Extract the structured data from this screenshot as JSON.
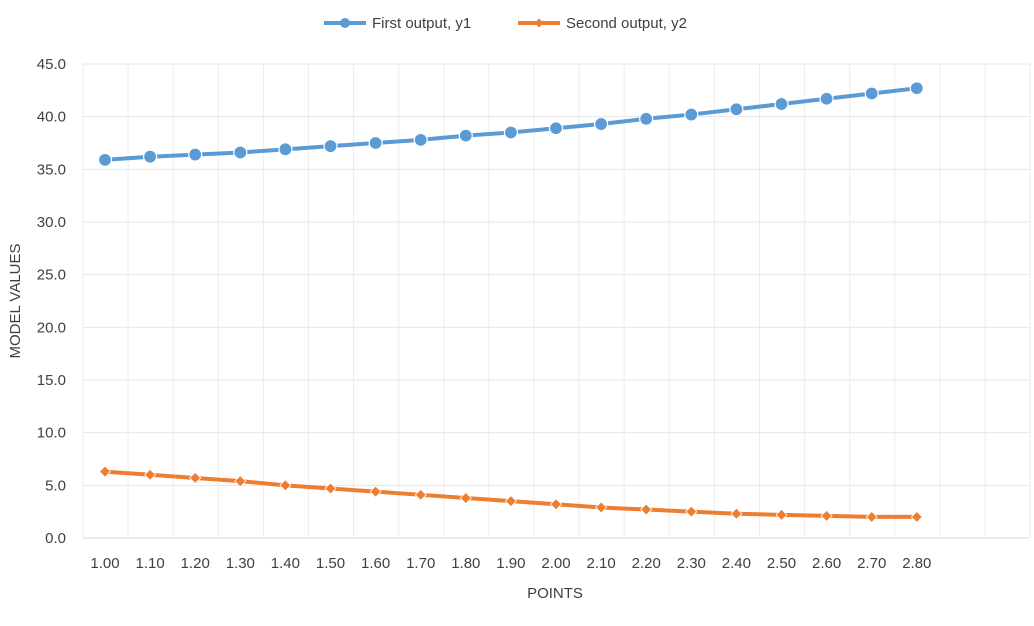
{
  "chart_data": {
    "type": "line",
    "xlabel": "POINTS",
    "ylabel": "MODEL VALUES",
    "ylim": [
      0,
      45
    ],
    "y_ticks": [
      "0.0",
      "5.0",
      "10.0",
      "15.0",
      "20.0",
      "25.0",
      "30.0",
      "35.0",
      "40.0",
      "45.0"
    ],
    "categories": [
      "1.00",
      "1.10",
      "1.20",
      "1.30",
      "1.40",
      "1.50",
      "1.60",
      "1.70",
      "1.80",
      "1.90",
      "2.00",
      "2.10",
      "2.20",
      "2.30",
      "2.40",
      "2.50",
      "2.60",
      "2.70",
      "2.80"
    ],
    "grid": "vertical-and-horizontal",
    "legend_position": "top",
    "series": [
      {
        "name": "First output, y1",
        "color": "#5B9BD5",
        "marker": "circle",
        "values": [
          35.9,
          36.2,
          36.4,
          36.6,
          36.9,
          37.2,
          37.5,
          37.8,
          38.2,
          38.5,
          38.9,
          39.3,
          39.8,
          40.2,
          40.7,
          41.2,
          41.7,
          42.2,
          42.7
        ]
      },
      {
        "name": "Second output, y2",
        "color": "#ED7D31",
        "marker": "diamond",
        "values": [
          6.3,
          6.0,
          5.7,
          5.4,
          5.0,
          4.7,
          4.4,
          4.1,
          3.8,
          3.5,
          3.2,
          2.9,
          2.7,
          2.5,
          2.3,
          2.2,
          2.1,
          2.0,
          2.0
        ]
      }
    ]
  }
}
